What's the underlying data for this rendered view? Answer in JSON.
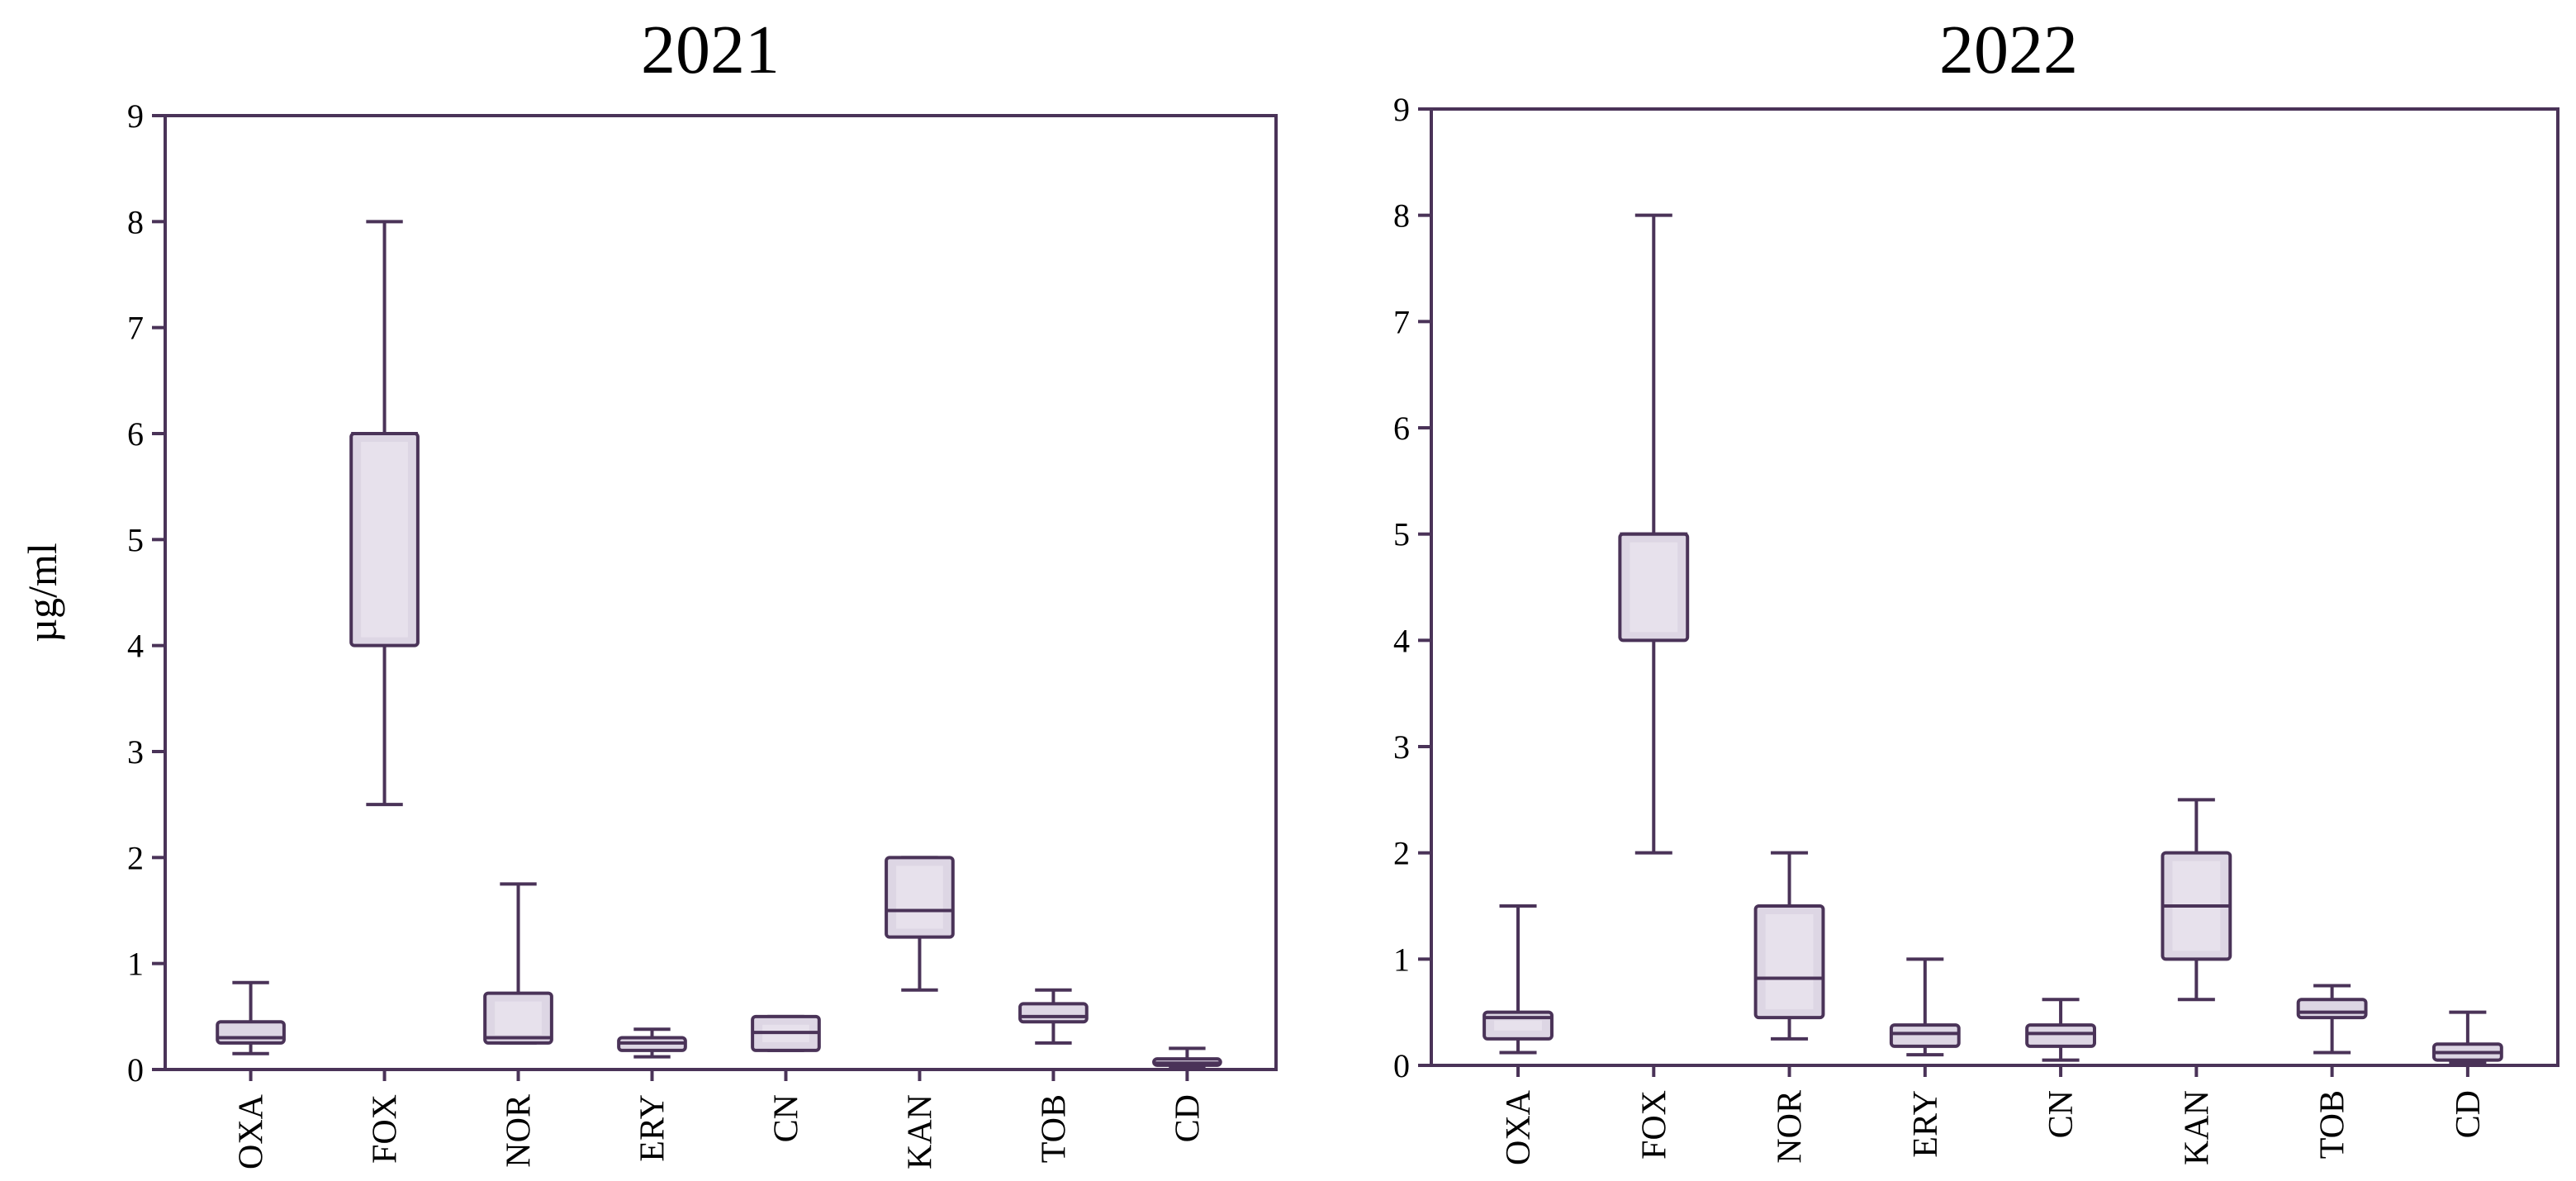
{
  "chart_data": [
    {
      "type": "box",
      "title": "2021",
      "ylabel": "µg/ml",
      "ylim": [
        0,
        9
      ],
      "yticks": [
        "0",
        "1",
        "2",
        "3",
        "4",
        "5",
        "6",
        "7",
        "8",
        "9"
      ],
      "categories": [
        "OXA",
        "FOX",
        "NOR",
        "ERY",
        "CN",
        "KAN",
        "TOB",
        "CD"
      ],
      "boxes": [
        {
          "min": 0.15,
          "q1": 0.25,
          "median": 0.3,
          "q3": 0.45,
          "max": 0.82
        },
        {
          "min": 2.5,
          "q1": 4.0,
          "median": 6.0,
          "q3": 6.0,
          "max": 8.0
        },
        {
          "min": 0.25,
          "q1": 0.25,
          "median": 0.3,
          "q3": 0.72,
          "max": 1.75
        },
        {
          "min": 0.12,
          "q1": 0.18,
          "median": 0.25,
          "q3": 0.3,
          "max": 0.38
        },
        {
          "min": 0.18,
          "q1": 0.18,
          "median": 0.35,
          "q3": 0.5,
          "max": 0.5
        },
        {
          "min": 0.75,
          "q1": 1.25,
          "median": 1.5,
          "q3": 2.0,
          "max": 2.0
        },
        {
          "min": 0.25,
          "q1": 0.45,
          "median": 0.5,
          "q3": 0.62,
          "max": 0.75
        },
        {
          "min": 0.02,
          "q1": 0.04,
          "median": 0.06,
          "q3": 0.1,
          "max": 0.2
        }
      ]
    },
    {
      "type": "box",
      "title": "2022",
      "ylabel": "",
      "ylim": [
        0,
        9
      ],
      "yticks": [
        "0",
        "1",
        "2",
        "3",
        "4",
        "5",
        "6",
        "7",
        "8",
        "9"
      ],
      "categories": [
        "OXA",
        "FOX",
        "NOR",
        "ERY",
        "CN",
        "KAN",
        "TOB",
        "CD"
      ],
      "boxes": [
        {
          "min": 0.12,
          "q1": 0.25,
          "median": 0.45,
          "q3": 0.5,
          "max": 1.5
        },
        {
          "min": 2.0,
          "q1": 4.0,
          "median": 5.0,
          "q3": 5.0,
          "max": 8.0
        },
        {
          "min": 0.25,
          "q1": 0.45,
          "median": 0.82,
          "q3": 1.5,
          "max": 2.0
        },
        {
          "min": 0.1,
          "q1": 0.18,
          "median": 0.3,
          "q3": 0.38,
          "max": 1.0
        },
        {
          "min": 0.05,
          "q1": 0.18,
          "median": 0.3,
          "q3": 0.38,
          "max": 0.62
        },
        {
          "min": 0.62,
          "q1": 1.0,
          "median": 1.5,
          "q3": 2.0,
          "max": 2.5
        },
        {
          "min": 0.12,
          "q1": 0.45,
          "median": 0.5,
          "q3": 0.62,
          "max": 0.75
        },
        {
          "min": 0.02,
          "q1": 0.05,
          "median": 0.12,
          "q3": 0.2,
          "max": 0.5
        }
      ]
    }
  ],
  "colors": {
    "stroke": "#4a3358",
    "fill": "#ddd6e4",
    "inner": "#efebf2",
    "text": "#000000"
  }
}
